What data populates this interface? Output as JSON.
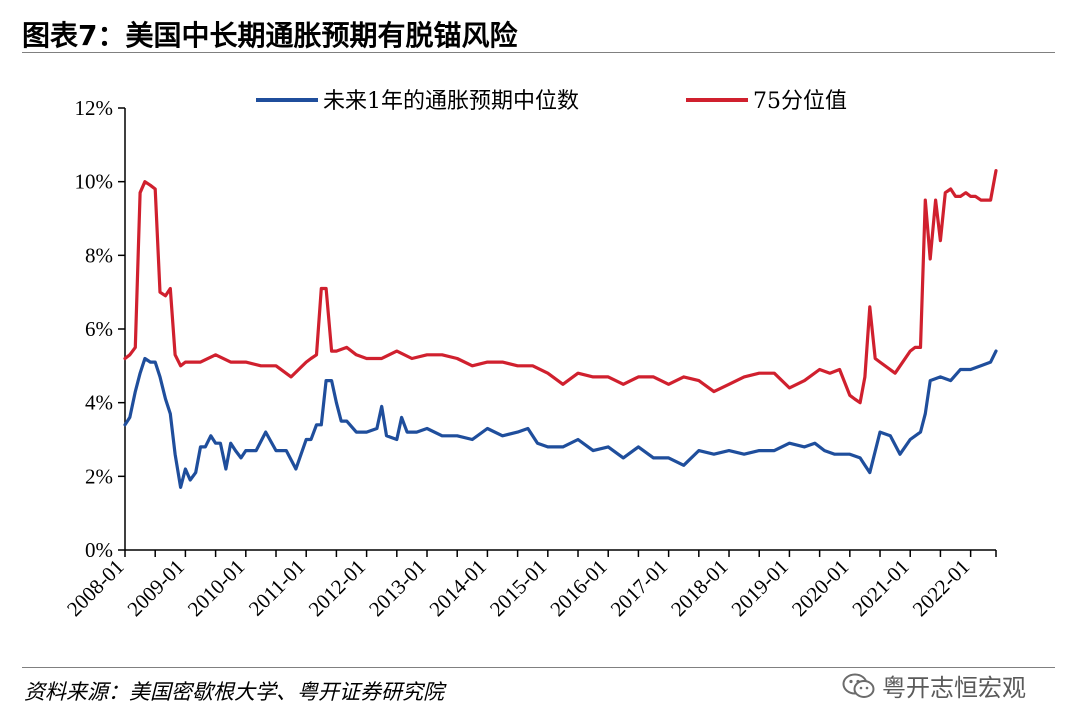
{
  "title": "图表7：美国中长期通胀预期有脱锚风险",
  "source": "资料来源：美国密歇根大学、粤开证券研究院",
  "watermark": {
    "icon": "wechat-icon",
    "text": "粤开志恒宏观"
  },
  "colors": {
    "median": "#1f4e9c",
    "p75": "#d0202e",
    "axis": "#000000",
    "rule": "#808080"
  },
  "chart_data": {
    "type": "line",
    "title": "",
    "xlabel": "",
    "ylabel": "",
    "ylim": [
      0,
      12
    ],
    "y_ticks": [
      0,
      2,
      4,
      6,
      8,
      10,
      12
    ],
    "y_tick_labels": [
      "0%",
      "2%",
      "4%",
      "6%",
      "8%",
      "10%",
      "12%"
    ],
    "x_range": [
      2008.0,
      2022.42
    ],
    "x_ticks": [
      2008,
      2009,
      2010,
      2011,
      2012,
      2013,
      2014,
      2015,
      2016,
      2017,
      2018,
      2019,
      2020,
      2021,
      2022
    ],
    "x_tick_labels": [
      "2008-01",
      "2009-01",
      "2010-01",
      "2011-01",
      "2012-01",
      "2013-01",
      "2014-01",
      "2015-01",
      "2016-01",
      "2017-01",
      "2018-01",
      "2019-01",
      "2020-01",
      "2021-01",
      "2022-01"
    ],
    "grid": false,
    "legend": "top",
    "series": [
      {
        "name": "未来1年的通胀预期中位数",
        "color": "#1f4e9c",
        "x": [
          2008.0,
          2008.08,
          2008.17,
          2008.25,
          2008.33,
          2008.42,
          2008.5,
          2008.58,
          2008.67,
          2008.75,
          2008.83,
          2008.92,
          2009.0,
          2009.08,
          2009.17,
          2009.25,
          2009.33,
          2009.42,
          2009.5,
          2009.58,
          2009.67,
          2009.75,
          2009.83,
          2009.92,
          2010.0,
          2010.17,
          2010.33,
          2010.5,
          2010.67,
          2010.83,
          2011.0,
          2011.08,
          2011.17,
          2011.25,
          2011.33,
          2011.42,
          2011.5,
          2011.58,
          2011.67,
          2011.83,
          2012.0,
          2012.17,
          2012.25,
          2012.33,
          2012.5,
          2012.58,
          2012.67,
          2012.83,
          2013.0,
          2013.25,
          2013.5,
          2013.75,
          2014.0,
          2014.25,
          2014.5,
          2014.67,
          2014.83,
          2015.0,
          2015.25,
          2015.5,
          2015.75,
          2016.0,
          2016.25,
          2016.5,
          2016.75,
          2017.0,
          2017.25,
          2017.5,
          2017.75,
          2018.0,
          2018.25,
          2018.5,
          2018.75,
          2019.0,
          2019.25,
          2019.42,
          2019.58,
          2019.75,
          2020.0,
          2020.17,
          2020.25,
          2020.33,
          2020.5,
          2020.67,
          2020.83,
          2021.0,
          2021.17,
          2021.25,
          2021.33,
          2021.5,
          2021.67,
          2021.83,
          2022.0,
          2022.17,
          2022.33,
          2022.42
        ],
        "values": [
          3.4,
          3.6,
          4.3,
          4.8,
          5.2,
          5.1,
          5.1,
          4.7,
          4.1,
          3.7,
          2.6,
          1.7,
          2.2,
          1.9,
          2.1,
          2.8,
          2.8,
          3.1,
          2.9,
          2.9,
          2.2,
          2.9,
          2.7,
          2.5,
          2.7,
          2.7,
          3.2,
          2.7,
          2.7,
          2.2,
          3.0,
          3.0,
          3.4,
          3.4,
          4.6,
          4.6,
          4.0,
          3.5,
          3.5,
          3.2,
          3.2,
          3.3,
          3.9,
          3.1,
          3.0,
          3.6,
          3.2,
          3.2,
          3.3,
          3.1,
          3.1,
          3.0,
          3.3,
          3.1,
          3.2,
          3.3,
          2.9,
          2.8,
          2.8,
          3.0,
          2.7,
          2.8,
          2.5,
          2.8,
          2.5,
          2.5,
          2.3,
          2.7,
          2.6,
          2.7,
          2.6,
          2.7,
          2.7,
          2.9,
          2.8,
          2.9,
          2.7,
          2.6,
          2.6,
          2.5,
          2.3,
          2.1,
          3.2,
          3.1,
          2.6,
          3.0,
          3.2,
          3.7,
          4.6,
          4.7,
          4.6,
          4.9,
          4.9,
          5.0,
          5.1,
          5.4
        ]
      },
      {
        "name": "75分位值",
        "color": "#d0202e",
        "x": [
          2008.0,
          2008.08,
          2008.17,
          2008.25,
          2008.33,
          2008.42,
          2008.5,
          2008.58,
          2008.67,
          2008.75,
          2008.83,
          2008.92,
          2009.0,
          2009.25,
          2009.5,
          2009.75,
          2010.0,
          2010.25,
          2010.5,
          2010.75,
          2011.0,
          2011.08,
          2011.17,
          2011.25,
          2011.33,
          2011.42,
          2011.5,
          2011.67,
          2011.83,
          2012.0,
          2012.25,
          2012.5,
          2012.75,
          2013.0,
          2013.25,
          2013.5,
          2013.75,
          2014.0,
          2014.25,
          2014.5,
          2014.75,
          2015.0,
          2015.25,
          2015.5,
          2015.75,
          2016.0,
          2016.25,
          2016.5,
          2016.75,
          2017.0,
          2017.25,
          2017.5,
          2017.75,
          2018.0,
          2018.25,
          2018.5,
          2018.75,
          2019.0,
          2019.25,
          2019.5,
          2019.67,
          2019.83,
          2020.0,
          2020.08,
          2020.17,
          2020.25,
          2020.33,
          2020.42,
          2020.5,
          2020.75,
          2021.0,
          2021.08,
          2021.17,
          2021.25,
          2021.33,
          2021.42,
          2021.5,
          2021.58,
          2021.67,
          2021.75,
          2021.83,
          2021.92,
          2022.0,
          2022.08,
          2022.17,
          2022.25,
          2022.33,
          2022.42
        ],
        "values": [
          5.2,
          5.3,
          5.5,
          9.7,
          10.0,
          9.9,
          9.8,
          7.0,
          6.9,
          7.1,
          5.3,
          5.0,
          5.1,
          5.1,
          5.3,
          5.1,
          5.1,
          5.0,
          5.0,
          4.7,
          5.1,
          5.2,
          5.3,
          7.1,
          7.1,
          5.4,
          5.4,
          5.5,
          5.3,
          5.2,
          5.2,
          5.4,
          5.2,
          5.3,
          5.3,
          5.2,
          5.0,
          5.1,
          5.1,
          5.0,
          5.0,
          4.8,
          4.5,
          4.8,
          4.7,
          4.7,
          4.5,
          4.7,
          4.7,
          4.5,
          4.7,
          4.6,
          4.3,
          4.5,
          4.7,
          4.8,
          4.8,
          4.4,
          4.6,
          4.9,
          4.8,
          4.9,
          4.2,
          4.1,
          4.0,
          4.7,
          6.6,
          5.2,
          5.1,
          4.8,
          5.4,
          5.5,
          5.5,
          9.5,
          7.9,
          9.5,
          8.4,
          9.7,
          9.8,
          9.6,
          9.6,
          9.7,
          9.6,
          9.6,
          9.5,
          9.5,
          9.5,
          10.3
        ]
      }
    ]
  }
}
